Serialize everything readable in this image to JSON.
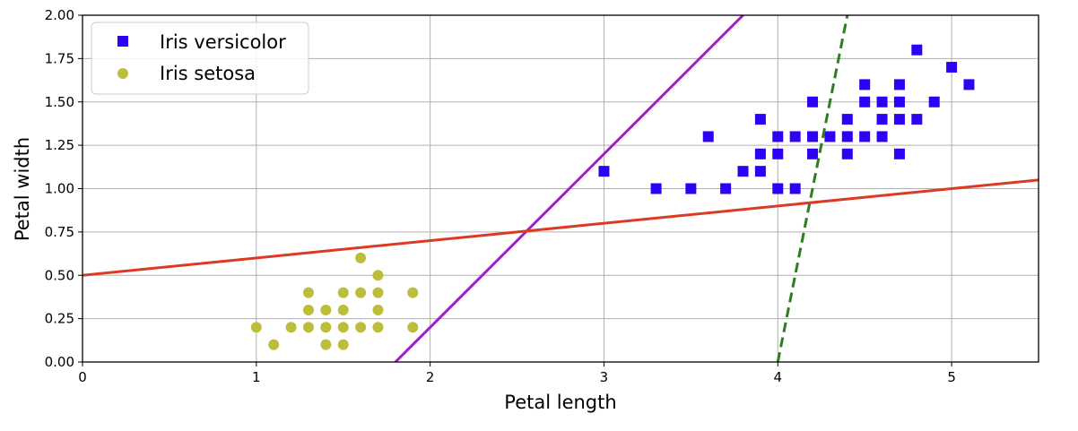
{
  "chart_data": {
    "type": "scatter",
    "xlabel": "Petal length",
    "ylabel": "Petal width",
    "xlim": [
      0,
      5.5
    ],
    "ylim": [
      0,
      2.0
    ],
    "xticks": [
      0,
      1,
      2,
      3,
      4,
      5
    ],
    "yticks": [
      "0.00",
      "0.25",
      "0.50",
      "0.75",
      "1.00",
      "1.25",
      "1.50",
      "1.75",
      "2.00"
    ],
    "grid": true,
    "legend": {
      "placement": "top-left",
      "entries": [
        {
          "label": "Iris versicolor",
          "marker": "square",
          "color": "#2e00f5"
        },
        {
          "label": "Iris setosa",
          "marker": "circle",
          "color": "#bdbd3c"
        }
      ]
    },
    "series": [
      {
        "name": "Iris versicolor",
        "marker": "square",
        "color": "#2e00f5",
        "points": [
          [
            3.0,
            1.1
          ],
          [
            3.3,
            1.0
          ],
          [
            3.5,
            1.0
          ],
          [
            3.6,
            1.3
          ],
          [
            3.7,
            1.0
          ],
          [
            3.8,
            1.1
          ],
          [
            3.9,
            1.4
          ],
          [
            3.9,
            1.2
          ],
          [
            3.9,
            1.1
          ],
          [
            4.0,
            1.3
          ],
          [
            4.0,
            1.2
          ],
          [
            4.0,
            1.0
          ],
          [
            4.1,
            1.3
          ],
          [
            4.1,
            1.0
          ],
          [
            4.2,
            1.5
          ],
          [
            4.2,
            1.3
          ],
          [
            4.2,
            1.2
          ],
          [
            4.3,
            1.3
          ],
          [
            4.4,
            1.4
          ],
          [
            4.4,
            1.3
          ],
          [
            4.4,
            1.2
          ],
          [
            4.5,
            1.6
          ],
          [
            4.5,
            1.5
          ],
          [
            4.5,
            1.3
          ],
          [
            4.6,
            1.5
          ],
          [
            4.6,
            1.4
          ],
          [
            4.6,
            1.3
          ],
          [
            4.7,
            1.6
          ],
          [
            4.7,
            1.5
          ],
          [
            4.7,
            1.4
          ],
          [
            4.7,
            1.2
          ],
          [
            4.8,
            1.8
          ],
          [
            4.8,
            1.4
          ],
          [
            4.9,
            1.5
          ],
          [
            5.0,
            1.7
          ],
          [
            5.1,
            1.6
          ]
        ]
      },
      {
        "name": "Iris setosa",
        "marker": "circle",
        "color": "#bdbd3c",
        "points": [
          [
            1.0,
            0.2
          ],
          [
            1.1,
            0.1
          ],
          [
            1.2,
            0.2
          ],
          [
            1.3,
            0.4
          ],
          [
            1.3,
            0.3
          ],
          [
            1.3,
            0.2
          ],
          [
            1.4,
            0.3
          ],
          [
            1.4,
            0.2
          ],
          [
            1.4,
            0.1
          ],
          [
            1.5,
            0.4
          ],
          [
            1.5,
            0.3
          ],
          [
            1.5,
            0.2
          ],
          [
            1.5,
            0.1
          ],
          [
            1.6,
            0.6
          ],
          [
            1.6,
            0.4
          ],
          [
            1.6,
            0.2
          ],
          [
            1.7,
            0.5
          ],
          [
            1.7,
            0.4
          ],
          [
            1.7,
            0.3
          ],
          [
            1.7,
            0.2
          ],
          [
            1.9,
            0.4
          ],
          [
            1.9,
            0.2
          ]
        ]
      }
    ],
    "lines": [
      {
        "style": "dashed",
        "color": "#2e7d1f",
        "points": [
          [
            4.0,
            0.0
          ],
          [
            4.4,
            2.0
          ]
        ]
      },
      {
        "style": "solid",
        "color": "#a020c8",
        "points": [
          [
            1.8,
            0.0
          ],
          [
            3.8,
            2.0
          ]
        ]
      },
      {
        "style": "solid",
        "color": "#dc3a22",
        "points": [
          [
            0.0,
            0.5
          ],
          [
            5.5,
            1.05
          ]
        ]
      }
    ]
  }
}
